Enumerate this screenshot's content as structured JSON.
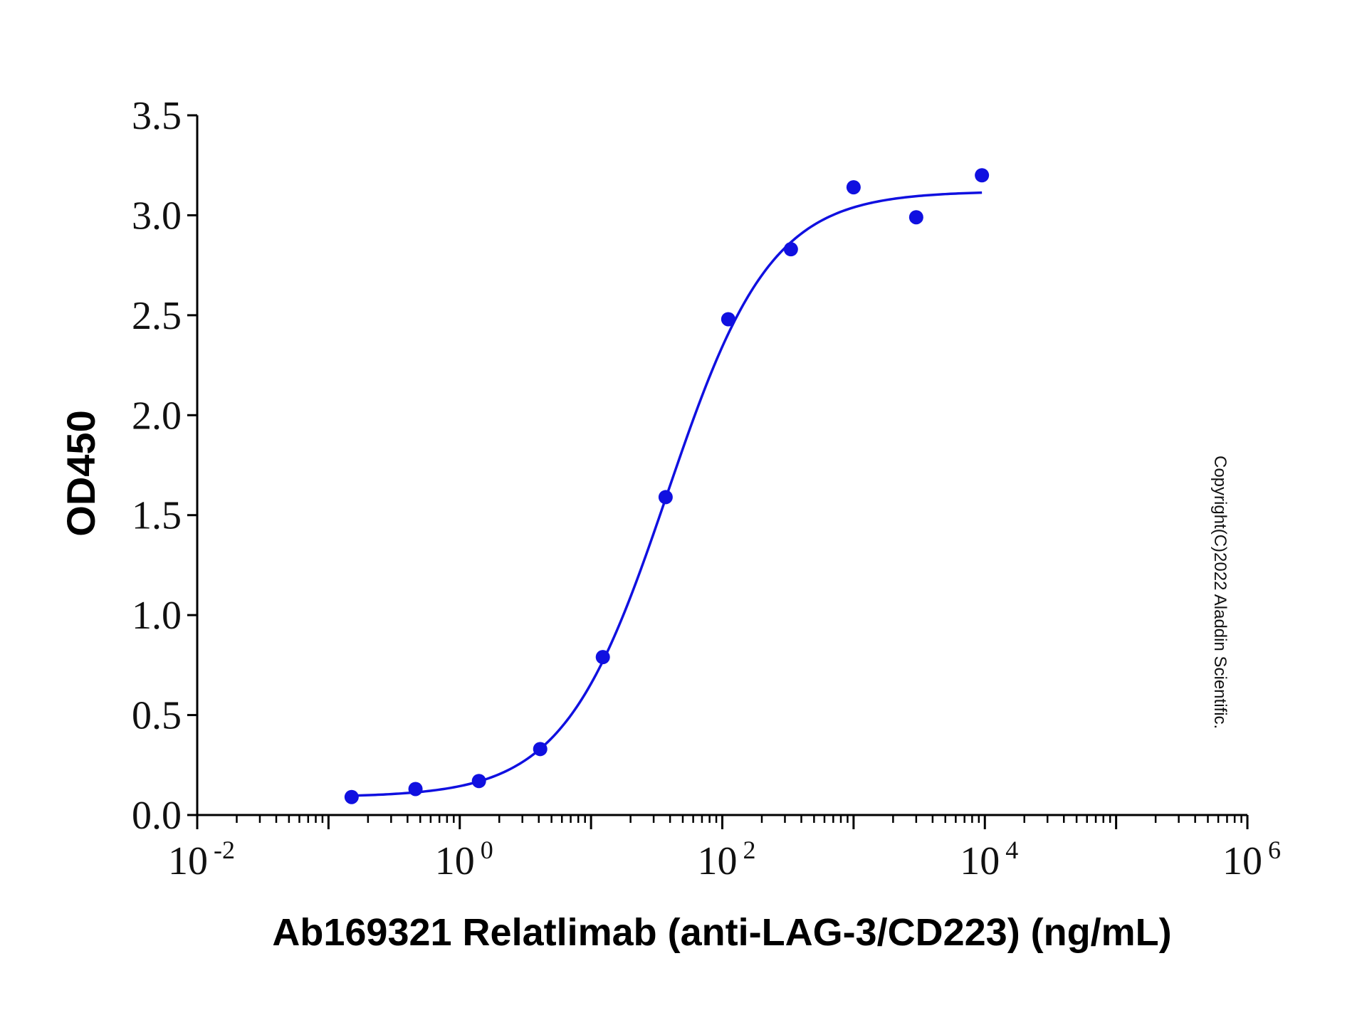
{
  "chart_data": {
    "type": "scatter",
    "title": "",
    "xlabel": "Ab169321 Relatlimab (anti-LAG-3/CD223) (ng/mL)",
    "ylabel": "OD450",
    "x_scale": "log",
    "xlim": [
      0.01,
      1000000
    ],
    "ylim": [
      0,
      3.5
    ],
    "x_ticks": [
      {
        "value": 0.01,
        "base": "10",
        "exp": "-2"
      },
      {
        "value": 1,
        "base": "10",
        "exp": "0"
      },
      {
        "value": 100,
        "base": "10",
        "exp": "2"
      },
      {
        "value": 10000,
        "base": "10",
        "exp": "4"
      },
      {
        "value": 1000000,
        "base": "10",
        "exp": "6"
      }
    ],
    "y_ticks": [
      "0.0",
      "0.5",
      "1.0",
      "1.5",
      "2.0",
      "2.5",
      "3.0",
      "3.5"
    ],
    "grid": false,
    "series": [
      {
        "color": "#1010e0",
        "points": [
          {
            "x": 0.15,
            "y": 0.09
          },
          {
            "x": 0.46,
            "y": 0.13
          },
          {
            "x": 1.4,
            "y": 0.17
          },
          {
            "x": 4.1,
            "y": 0.33
          },
          {
            "x": 12.3,
            "y": 0.79
          },
          {
            "x": 37,
            "y": 1.59
          },
          {
            "x": 111,
            "y": 2.48
          },
          {
            "x": 333,
            "y": 2.83
          },
          {
            "x": 1000,
            "y": 3.14
          },
          {
            "x": 3000,
            "y": 2.99
          },
          {
            "x": 9500,
            "y": 3.2
          }
        ],
        "fit": {
          "bottom": 0.09,
          "top": 3.12,
          "ec50": 38,
          "hill": 1.1,
          "x_range": [
            0.15,
            9500
          ]
        }
      }
    ],
    "annotation": "Copyright(C)2022 Aladdin Scientific."
  }
}
